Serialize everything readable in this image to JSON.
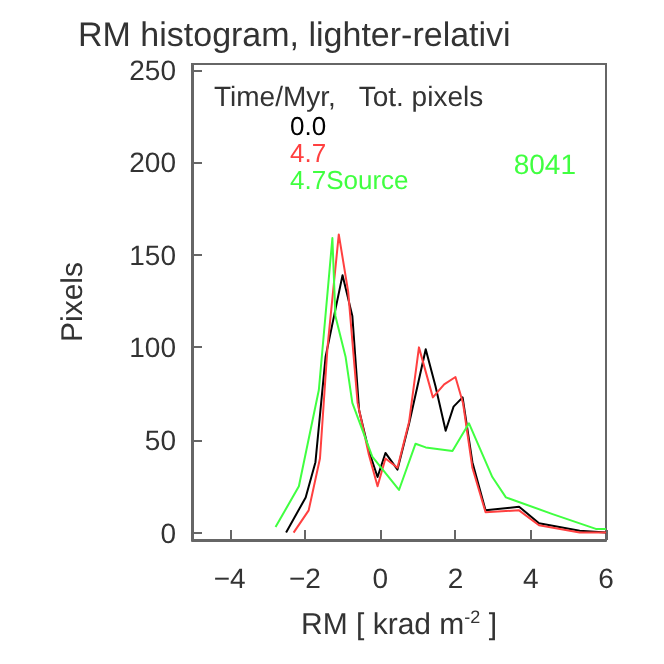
{
  "chart_data": {
    "type": "line",
    "title": "RM histogram, lighter-relativi",
    "xlabel": "RM [ krad m$^{-2}$ ]",
    "ylabel": "Pixels",
    "legend_title": "Time/Myr,   Tot. pixels",
    "annotations": [
      "8041"
    ],
    "xlim": [
      -5,
      6
    ],
    "xticks": [
      -4,
      -2,
      0,
      2,
      4,
      6
    ],
    "ylim": [
      -4,
      253
    ],
    "yticks": [
      0,
      50,
      100,
      150,
      200,
      250
    ],
    "grid": false,
    "legend": "top left",
    "marker": "none",
    "line_style": "solid",
    "series": [
      {
        "name": "0.0",
        "color": "#000000",
        "x": [
          -2.5,
          -1.98,
          -1.72,
          -1.45,
          -1.0,
          -0.74,
          -0.56,
          -0.3,
          -0.07,
          0.14,
          0.46,
          0.77,
          1.21,
          1.47,
          1.74,
          1.95,
          2.19,
          2.45,
          2.8,
          3.69,
          4.22,
          5.3,
          6.0
        ],
        "values": [
          0,
          19,
          38,
          95,
          139,
          117,
          66,
          44,
          30,
          43,
          34,
          59,
          99,
          79,
          55,
          68,
          73,
          38,
          12,
          14,
          5,
          1,
          0
        ]
      },
      {
        "name": "4.7",
        "color": "#ff4040",
        "x": [
          -2.3,
          -1.9,
          -1.6,
          -1.4,
          -1.1,
          -0.85,
          -0.6,
          -0.3,
          -0.07,
          0.14,
          0.46,
          0.77,
          1.03,
          1.4,
          1.7,
          2.0,
          2.2,
          2.45,
          2.8,
          3.69,
          4.22,
          5.3,
          6.0
        ],
        "values": [
          0,
          12,
          40,
          100,
          161,
          130,
          70,
          42,
          25,
          40,
          35,
          60,
          100,
          73,
          80,
          84,
          70,
          35,
          11,
          12,
          4,
          0,
          0
        ]
      },
      {
        "name": "4.7Source",
        "color": "#40ff40",
        "x": [
          -2.78,
          -2.16,
          -1.63,
          -1.27,
          -1.19,
          -0.92,
          -0.74,
          -0.21,
          0.5,
          0.94,
          1.21,
          1.92,
          2.36,
          2.98,
          3.34,
          4.58,
          5.73,
          6.0
        ],
        "values": [
          3,
          25,
          77,
          159,
          117,
          95,
          70,
          41,
          23,
          48,
          46,
          44,
          59,
          30,
          19,
          10,
          2,
          2
        ]
      }
    ]
  }
}
